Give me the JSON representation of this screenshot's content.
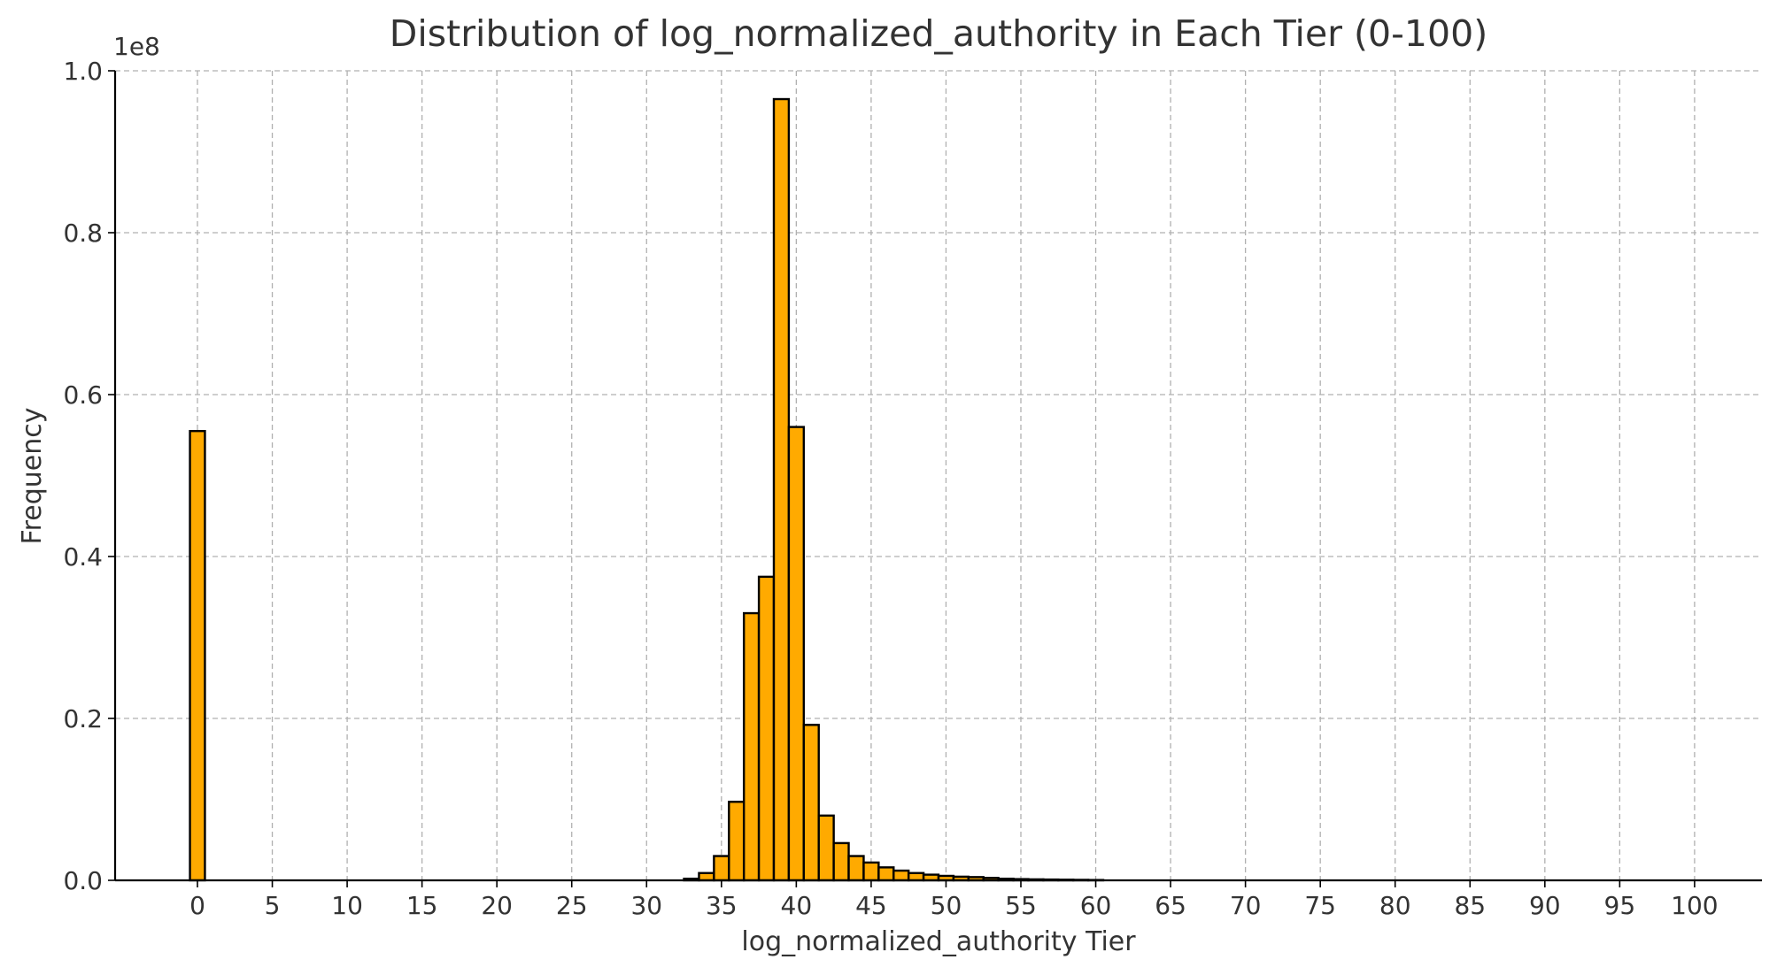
{
  "chart_data": {
    "type": "bar",
    "title": "Distribution of log_normalized_authority in Each Tier (0-100)",
    "xlabel": "log_normalized_authority Tier",
    "ylabel": "Frequency",
    "y_multiplier_label": "1e8",
    "y_multiplier": 100000000,
    "grid": true,
    "xlim": [
      -5.5,
      104.5
    ],
    "ylim": [
      0,
      100000000.0
    ],
    "x_ticks": [
      0,
      5,
      10,
      15,
      20,
      25,
      30,
      35,
      40,
      45,
      50,
      55,
      60,
      65,
      70,
      75,
      80,
      85,
      90,
      95,
      100
    ],
    "y_ticks": [
      0,
      0.2,
      0.4,
      0.6,
      0.8,
      1.0
    ],
    "y_tick_labels": [
      "0.0",
      "0.2",
      "0.4",
      "0.6",
      "0.8",
      "1.0"
    ],
    "bar_color": "#ffaa00",
    "edge_color": "#000000",
    "bars": [
      {
        "tier": 0,
        "value": 55500000
      },
      {
        "tier": 33,
        "value": 200000
      },
      {
        "tier": 34,
        "value": 900000
      },
      {
        "tier": 35,
        "value": 3000000
      },
      {
        "tier": 36,
        "value": 9700000
      },
      {
        "tier": 37,
        "value": 33000000
      },
      {
        "tier": 38,
        "value": 37500000
      },
      {
        "tier": 39,
        "value": 96500000
      },
      {
        "tier": 40,
        "value": 56000000
      },
      {
        "tier": 41,
        "value": 19200000
      },
      {
        "tier": 42,
        "value": 8000000
      },
      {
        "tier": 43,
        "value": 4600000
      },
      {
        "tier": 44,
        "value": 3000000
      },
      {
        "tier": 45,
        "value": 2200000
      },
      {
        "tier": 46,
        "value": 1600000
      },
      {
        "tier": 47,
        "value": 1200000
      },
      {
        "tier": 48,
        "value": 900000
      },
      {
        "tier": 49,
        "value": 700000
      },
      {
        "tier": 50,
        "value": 550000
      },
      {
        "tier": 51,
        "value": 450000
      },
      {
        "tier": 52,
        "value": 400000
      },
      {
        "tier": 53,
        "value": 300000
      },
      {
        "tier": 54,
        "value": 200000
      },
      {
        "tier": 55,
        "value": 150000
      },
      {
        "tier": 56,
        "value": 120000
      },
      {
        "tier": 57,
        "value": 100000
      },
      {
        "tier": 58,
        "value": 80000
      },
      {
        "tier": 59,
        "value": 60000
      },
      {
        "tier": 60,
        "value": 40000
      }
    ]
  }
}
